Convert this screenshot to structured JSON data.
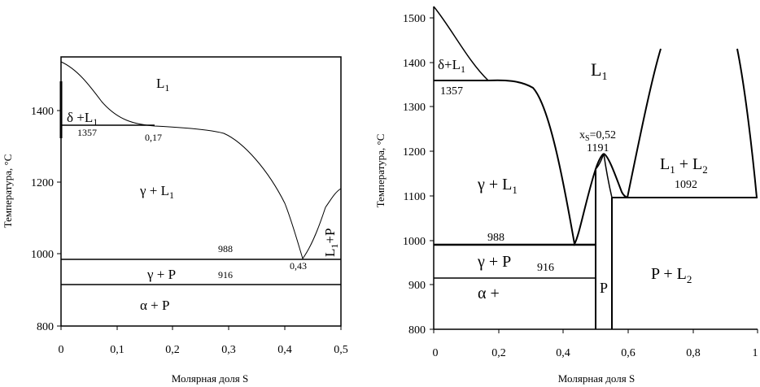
{
  "left_panel": {
    "xlabel": "Молярная доля S",
    "ylabel": "Температура, °С",
    "x_ticks": [
      "0",
      "0,1",
      "0,2",
      "0,3",
      "0,4",
      "0,5"
    ],
    "y_ticks": [
      "800",
      "1000",
      "1200",
      "1400"
    ],
    "xlim": [
      0,
      0.5
    ],
    "ylim": [
      800,
      1540
    ],
    "regions": {
      "l1": "L",
      "l1_sub": "1",
      "delta_l1": "δ +L",
      "delta_l1_sub": "1",
      "gamma_l1": "γ + L",
      "gamma_l1_sub": "1",
      "gamma_p": "γ + P",
      "alpha_p": "α + P",
      "l1p_main": "L",
      "l1p_sub": "1",
      "l1p_tail": "+P"
    },
    "annotations": {
      "t1357": "1357",
      "x017": "0,17",
      "t988": "988",
      "t916": "916",
      "x043": "0,43"
    }
  },
  "right_panel": {
    "xlabel": "Молярная доля S",
    "ylabel": "Температура, °С",
    "x_ticks": [
      "0",
      "0,2",
      "0,4",
      "0,6",
      "0,8",
      "1"
    ],
    "y_ticks": [
      "800",
      "900",
      "1000",
      "1100",
      "1200",
      "1300",
      "1400",
      "1500"
    ],
    "xlim": [
      0,
      1
    ],
    "ylim": [
      800,
      1540
    ],
    "regions": {
      "l1": "L",
      "l1_sub": "1",
      "delta_l1": "δ+L",
      "delta_l1_sub": "1",
      "gamma_l1": "γ + L",
      "gamma_l1_sub": "1",
      "l1_l2_a": "L",
      "l1_l2_a_sub": "1",
      "l1_l2_mid": " + L",
      "l1_l2_b_sub": "2",
      "gamma_p": "γ + P",
      "alpha": "α +",
      "p": "P",
      "p_l2": "P + L",
      "p_l2_sub": "2"
    },
    "annotations": {
      "t1357": "1357",
      "xs_pre": "x",
      "xs_sub": "S",
      "xs_post": "=0,52",
      "t1191": "1191",
      "t1092": "1092",
      "t988": "988",
      "t916": "916"
    }
  }
}
